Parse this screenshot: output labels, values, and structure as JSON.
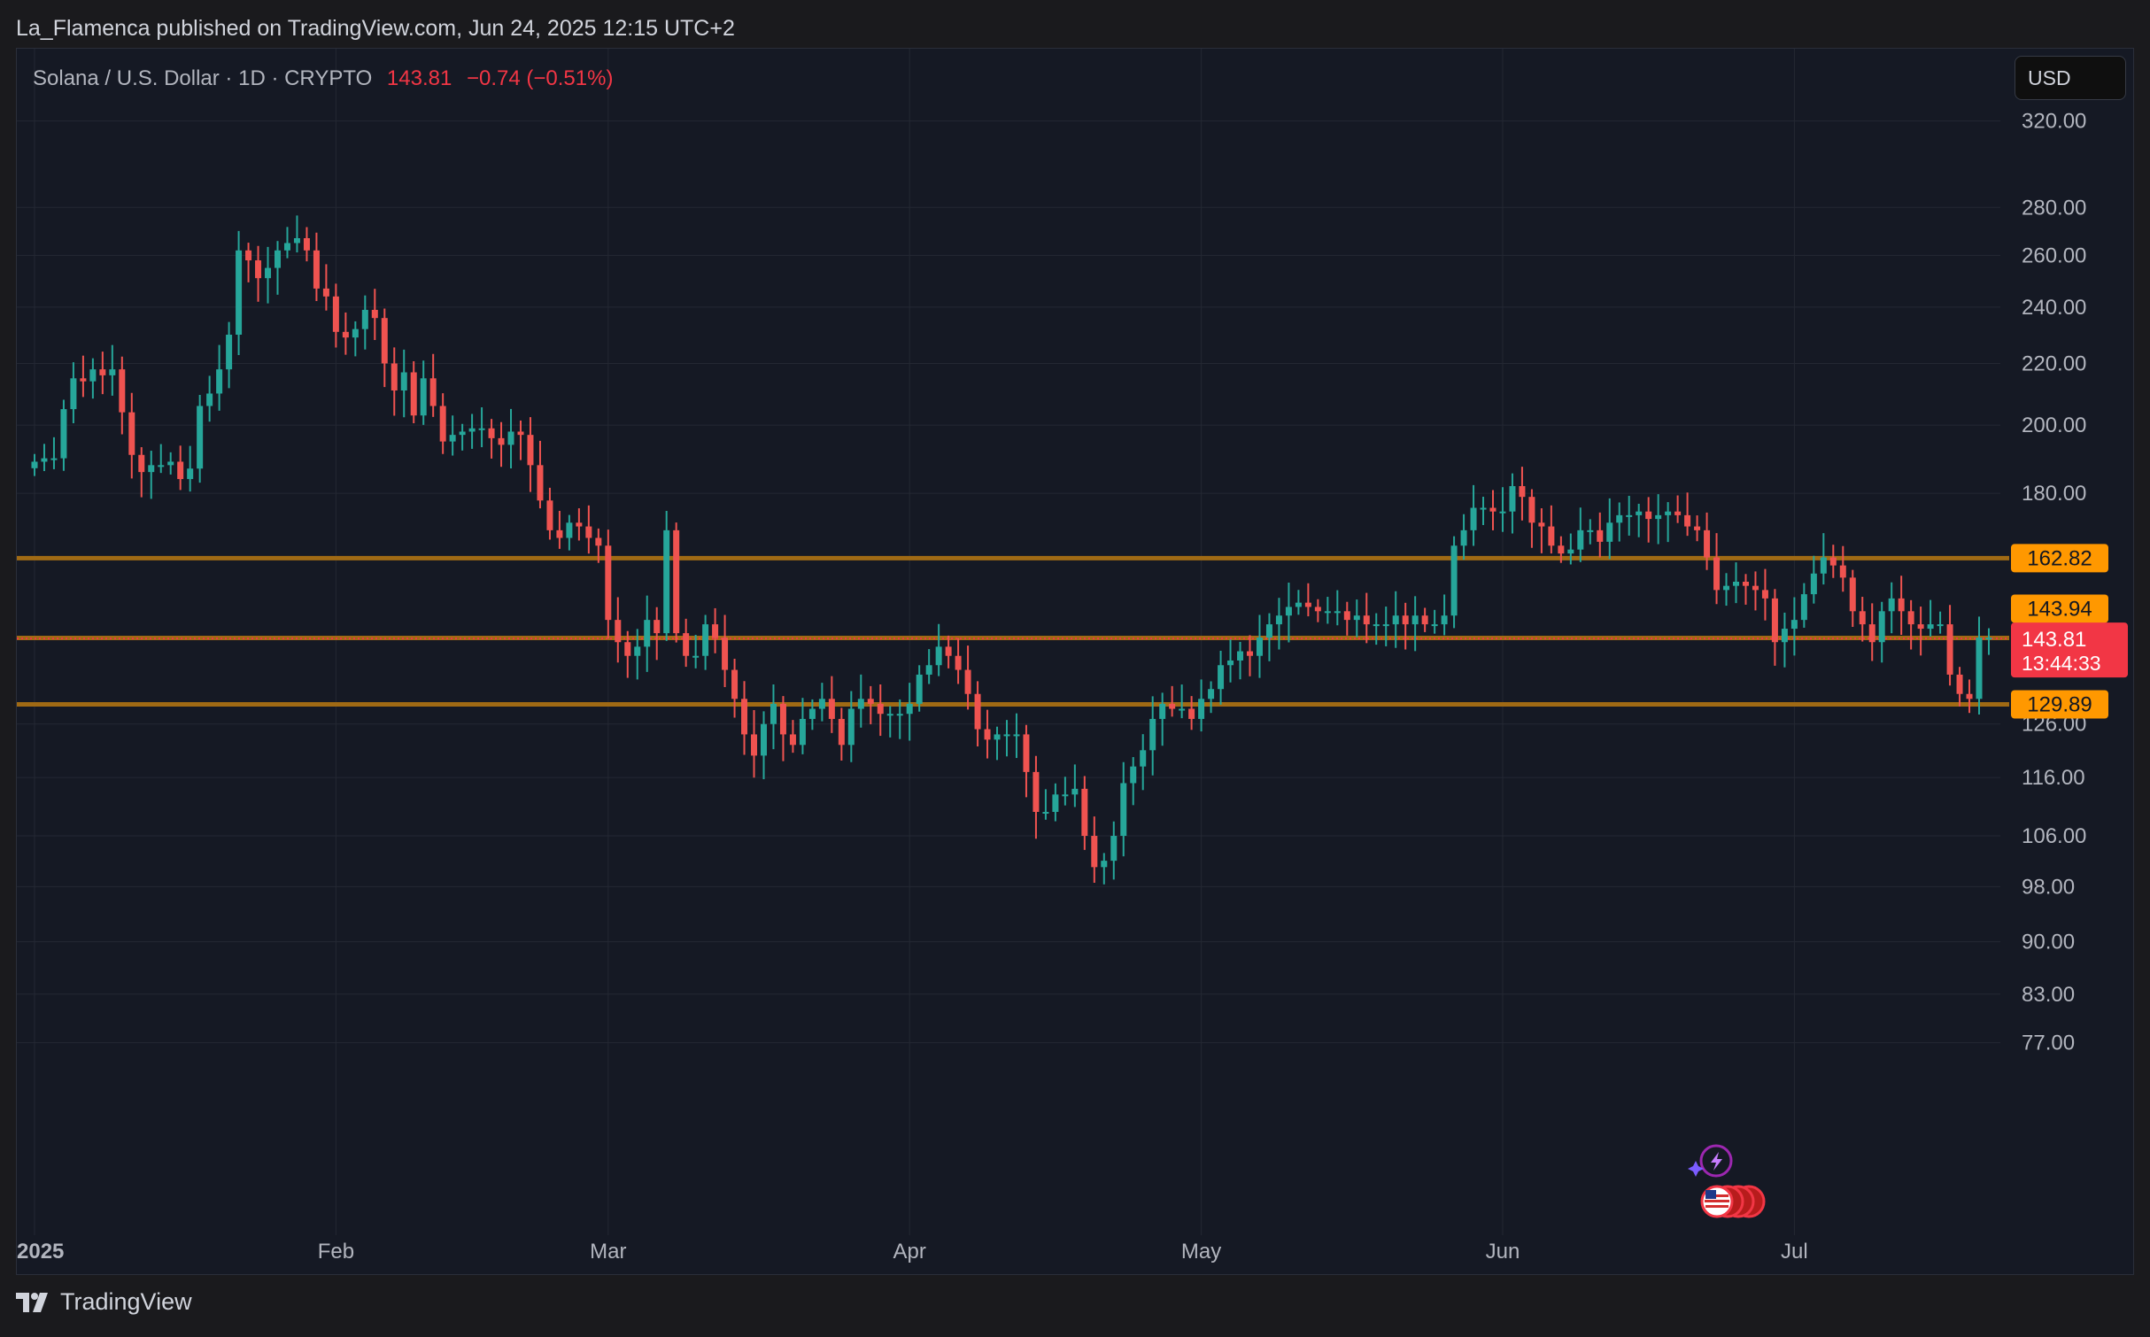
{
  "header": {
    "attribution": "La_Flamenca published on TradingView.com, Jun 24, 2025 12:15 UTC+2"
  },
  "legend": {
    "symbol": "Solana / U.S. Dollar · 1D · CRYPTO",
    "last_price": "143.81",
    "change": "−0.74 (−0.51%)"
  },
  "currency_button": {
    "label": "USD"
  },
  "footer": {
    "brand": "TradingView"
  },
  "colors": {
    "up": "#26a69a",
    "down": "#ef5350",
    "level_line": "#a06a14",
    "level_badge": "#ff9800",
    "price_badge": "#f23645"
  },
  "icons": [
    "tradingview-logo-icon",
    "lightning-event-icon",
    "us-flag-event-icon"
  ],
  "chart_data": {
    "type": "candlestick",
    "y_scale": "log",
    "x_labels": [
      "2025",
      "Feb",
      "Mar",
      "Apr",
      "May",
      "Jun",
      "Jul"
    ],
    "y_ticks": [
      "320.00",
      "280.00",
      "260.00",
      "240.00",
      "220.00",
      "200.00",
      "180.00",
      "126.00",
      "116.00",
      "106.00",
      "98.00",
      "90.00",
      "83.00",
      "77.00"
    ],
    "start_date": "2025-01-01",
    "last_date": "2025-06-24",
    "horizontal_levels": [
      {
        "label": "162.82",
        "value": 162.82
      },
      {
        "label": "143.94",
        "value": 143.94
      },
      {
        "label": "129.89",
        "value": 129.89
      }
    ],
    "current_price": {
      "label": "143.81",
      "value": 143.81,
      "countdown": "13:44:33"
    },
    "closes": [
      189,
      190,
      190,
      205,
      215,
      214,
      218,
      216,
      218,
      204,
      191,
      186,
      188,
      188,
      189,
      184,
      187,
      206,
      210,
      218,
      230,
      262,
      258,
      251,
      255,
      262,
      265,
      267,
      262,
      247,
      244,
      231,
      229,
      232,
      239,
      236,
      220,
      211,
      217,
      203,
      215,
      206,
      195,
      197,
      198,
      199,
      199,
      196,
      194,
      198,
      197,
      188,
      178,
      170,
      168,
      172,
      171,
      168,
      166,
      148,
      143,
      140,
      142,
      148,
      145,
      170,
      145,
      140,
      140,
      147,
      144,
      137,
      131,
      124,
      120,
      126,
      130,
      124,
      122,
      127,
      129,
      131,
      127,
      122,
      129,
      131,
      130,
      128,
      128,
      128,
      130,
      136,
      138,
      142,
      140,
      137,
      132,
      125,
      123,
      124,
      124,
      124,
      117,
      110,
      110,
      113,
      113,
      114,
      106,
      101,
      102,
      106,
      115,
      118,
      121,
      127,
      130,
      129,
      129,
      127,
      131,
      133,
      138,
      139,
      141,
      140,
      144,
      147,
      149,
      151,
      152,
      151,
      150,
      150,
      150,
      148,
      149,
      147,
      147,
      147,
      149,
      147,
      149,
      147,
      147,
      149,
      166,
      170,
      176,
      176,
      175,
      175,
      182,
      179,
      172,
      171,
      166,
      164,
      165,
      170,
      170,
      167,
      172,
      174,
      174,
      175,
      173,
      174,
      175,
      174,
      171,
      170,
      163,
      155,
      156,
      157,
      156,
      155,
      153,
      143,
      146,
      148,
      154,
      159,
      163,
      161,
      158,
      150,
      147,
      143,
      150,
      153,
      150,
      147,
      146,
      147,
      147,
      136,
      132,
      131,
      144,
      144
    ]
  }
}
